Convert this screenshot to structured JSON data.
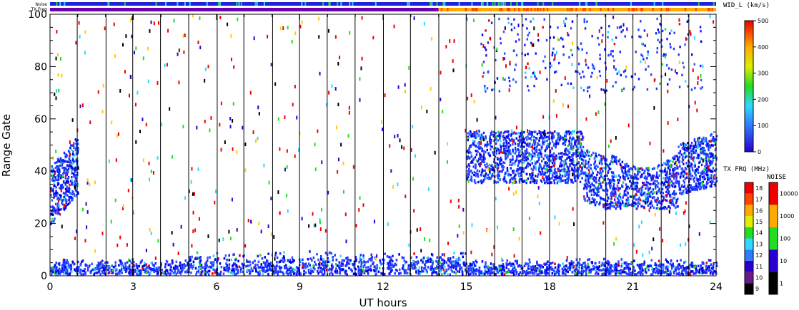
{
  "header": {
    "noise_label": "Noise",
    "txfreq_label": "TX Freq"
  },
  "chart_data": {
    "type": "heatmap",
    "xlabel": "UT hours",
    "ylabel": "Range Gate",
    "xlim": [
      0,
      24
    ],
    "ylim": [
      0,
      100
    ],
    "x_ticks": [
      "0",
      "3",
      "6",
      "9",
      "12",
      "15",
      "18",
      "21",
      "24"
    ],
    "x_tick_values": [
      0,
      3,
      6,
      9,
      12,
      15,
      18,
      21,
      24
    ],
    "y_ticks": [
      "0",
      "20",
      "40",
      "60",
      "80",
      "100"
    ],
    "y_tick_values": [
      0,
      20,
      40,
      60,
      80,
      100
    ],
    "scan_boundaries_ut": [
      1,
      2,
      3,
      4,
      5,
      6,
      7,
      8,
      9,
      10,
      11,
      12,
      13,
      14,
      15,
      16,
      17,
      18,
      19,
      20,
      21,
      22,
      23
    ],
    "tx_freq_bar": [
      {
        "from": 0,
        "to": 14,
        "color": "#6a00a8"
      },
      {
        "from": 14,
        "to": 24,
        "color": "#ffaa00"
      }
    ],
    "noise_bar_color": "#2222dd",
    "echo_regions": [
      {
        "ut_start": 0.0,
        "ut_end": 1.0,
        "gate_min": 20,
        "gate_max": 55,
        "note": "early cluster"
      },
      {
        "ut_start": 15.0,
        "ut_end": 24.0,
        "gate_min": 25,
        "gate_max": 56,
        "note": "main band"
      },
      {
        "ut_start": 15.5,
        "ut_end": 23.5,
        "gate_min": 70,
        "gate_max": 100,
        "note": "upper scatter"
      },
      {
        "ut_start": 0.0,
        "ut_end": 24.0,
        "gate_min": 0,
        "gate_max": 8,
        "note": "near-range clutter"
      }
    ],
    "wid_colorbar": {
      "title": "WID_L (km/s)",
      "ticks": [
        "0",
        "100",
        "200",
        "300",
        "400",
        "500"
      ],
      "values": [
        0,
        100,
        200,
        300,
        400,
        500
      ]
    },
    "txfreq_colorbar": {
      "title": "TX FRQ (MHz)",
      "ticks": [
        "9",
        "10",
        "11",
        "12",
        "13",
        "14",
        "15",
        "16",
        "17",
        "18"
      ],
      "values": [
        9,
        10,
        11,
        12,
        13,
        14,
        15,
        16,
        17,
        18
      ],
      "colors": [
        "#000000",
        "#6a1a8a",
        "#2a00d0",
        "#2f7bff",
        "#2fd8ff",
        "#22dd22",
        "#ddee00",
        "#ffaa00",
        "#ff4400",
        "#ee0000"
      ]
    },
    "noise_colorbar": {
      "title": "NOISE",
      "ticks": [
        "1",
        "10",
        "100",
        "1000",
        "10000"
      ],
      "values": [
        1,
        10,
        100,
        1000,
        10000
      ],
      "colors": [
        "#000000",
        "#2a00d0",
        "#22dd22",
        "#ffaa00",
        "#ee0000"
      ]
    }
  }
}
